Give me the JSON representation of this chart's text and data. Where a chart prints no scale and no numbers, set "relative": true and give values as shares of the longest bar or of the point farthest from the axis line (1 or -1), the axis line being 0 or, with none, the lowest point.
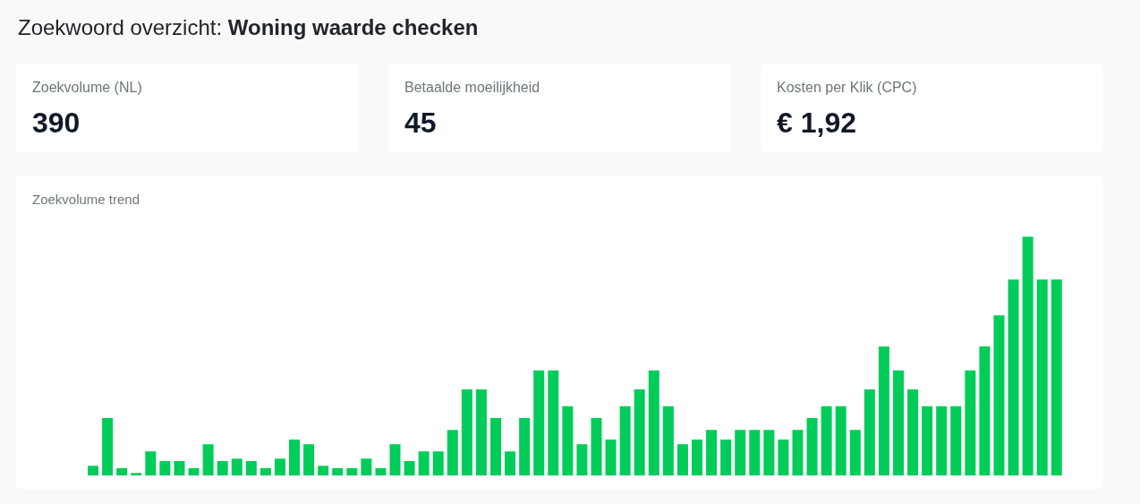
{
  "chart_data": [
    {
      "type": "other",
      "title": "Zoekwoord overzicht:",
      "subtitle": "Woning waarde checken"
    },
    {
      "type": "other",
      "title": "Zoekvolume (NL)",
      "annotations": [
        "390"
      ]
    },
    {
      "type": "other",
      "title": "Betaalde moeilijkheid",
      "annotations": [
        "45"
      ]
    },
    {
      "type": "other",
      "title": "Kosten per Klik (CPC)",
      "annotations": [
        "€ 1,92"
      ]
    },
    {
      "type": "bar",
      "title": "Zoekvolume trend",
      "relative": true,
      "color": "#00cc5a",
      "categories": [
        null,
        null,
        null,
        null,
        null,
        null,
        null,
        null,
        null,
        null,
        null,
        null,
        null,
        null,
        null,
        null,
        null,
        null,
        null,
        null,
        null,
        null,
        null,
        null,
        null,
        null,
        null,
        null,
        null,
        null,
        null,
        null,
        null,
        null,
        null,
        null,
        null,
        null,
        null,
        null,
        null,
        null,
        null,
        null,
        null,
        null,
        null,
        null,
        null,
        null,
        null,
        null,
        null,
        null,
        null,
        null,
        null,
        null,
        null,
        null,
        null,
        null,
        null,
        null,
        null,
        null,
        null,
        null
      ],
      "values": [
        0.04,
        0.24,
        0.03,
        0.01,
        0.1,
        0.06,
        0.06,
        0.03,
        0.13,
        0.06,
        0.07,
        0.06,
        0.03,
        0.07,
        0.15,
        0.13,
        0.04,
        0.03,
        0.03,
        0.07,
        0.03,
        0.13,
        0.06,
        0.1,
        0.1,
        0.19,
        0.36,
        0.36,
        0.24,
        0.1,
        0.24,
        0.44,
        0.44,
        0.29,
        0.13,
        0.24,
        0.15,
        0.29,
        0.36,
        0.44,
        0.29,
        0.13,
        0.15,
        0.19,
        0.15,
        0.19,
        0.19,
        0.19,
        0.15,
        0.19,
        0.24,
        0.29,
        0.29,
        0.19,
        0.36,
        0.54,
        0.44,
        0.36,
        0.29,
        0.29,
        0.29,
        0.44,
        0.54,
        0.67,
        0.82,
        1,
        0.82,
        0.82
      ]
    }
  ]
}
